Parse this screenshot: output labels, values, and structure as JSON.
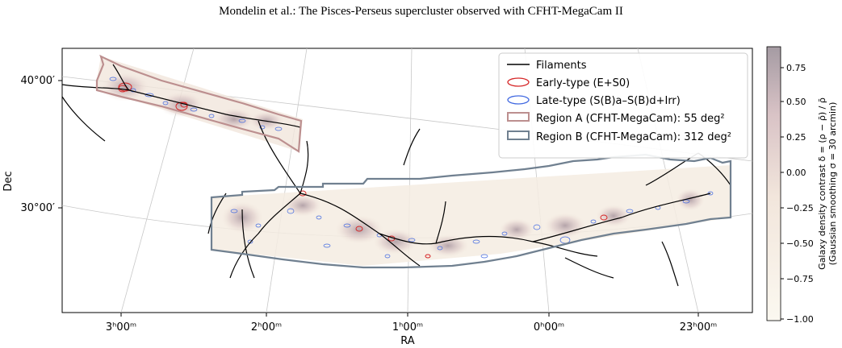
{
  "header": {
    "running_title": "Mondelin et al.: The Pisces-Perseus supercluster observed with CFHT-MegaCam II"
  },
  "chart_data": {
    "type": "map",
    "xlabel": "RA",
    "ylabel": "Dec",
    "x_ticks": [
      {
        "label": "3ʰ00ᵐ",
        "ra_hours": 3.0
      },
      {
        "label": "2ʰ00ᵐ",
        "ra_hours": 2.0
      },
      {
        "label": "1ʰ00ᵐ",
        "ra_hours": 1.0
      },
      {
        "label": "0ʰ00ᵐ",
        "ra_hours": 0.0
      },
      {
        "label": "23ʰ00ᵐ",
        "ra_hours": -1.0
      }
    ],
    "y_ticks": [
      {
        "label": "40°00′",
        "dec_deg": 40
      },
      {
        "label": "30°00′",
        "dec_deg": 30
      }
    ],
    "grid": true,
    "legend_position": "top-right",
    "legend": [
      {
        "label": "Filaments",
        "kind": "line",
        "color": "#000000"
      },
      {
        "label": "Early-type (E+S0)",
        "kind": "ellipse",
        "color": "#d62728"
      },
      {
        "label": "Late-type (S(B)a–S(B)d+Irr)",
        "kind": "ellipse",
        "color": "#4169e1"
      },
      {
        "label": "Region A (CFHT-MegaCam): 55 deg²",
        "kind": "patch",
        "color": "#bc8f8f"
      },
      {
        "label": "Region B (CFHT-MegaCam): 312 deg²",
        "kind": "patch",
        "color": "#708090"
      }
    ],
    "colorbar": {
      "label_line1": "Galaxy density contrast δ = (ρ − ρ̄) / ρ̄",
      "label_line2": "(Gaussian smoothing σ = 30 arcmin)",
      "ticks": [
        "0.75",
        "0.50",
        "0.25",
        "0.00",
        "−0.25",
        "−0.50",
        "−0.75",
        "−1.00"
      ],
      "range": [
        -1.0,
        0.9
      ],
      "colormap": [
        "#fbf8f0",
        "#f1e6d8",
        "#d8c0c0",
        "#a89ea4"
      ]
    },
    "regions": [
      {
        "name": "Region A",
        "area_deg2": 55
      },
      {
        "name": "Region B",
        "area_deg2": 312
      }
    ]
  }
}
